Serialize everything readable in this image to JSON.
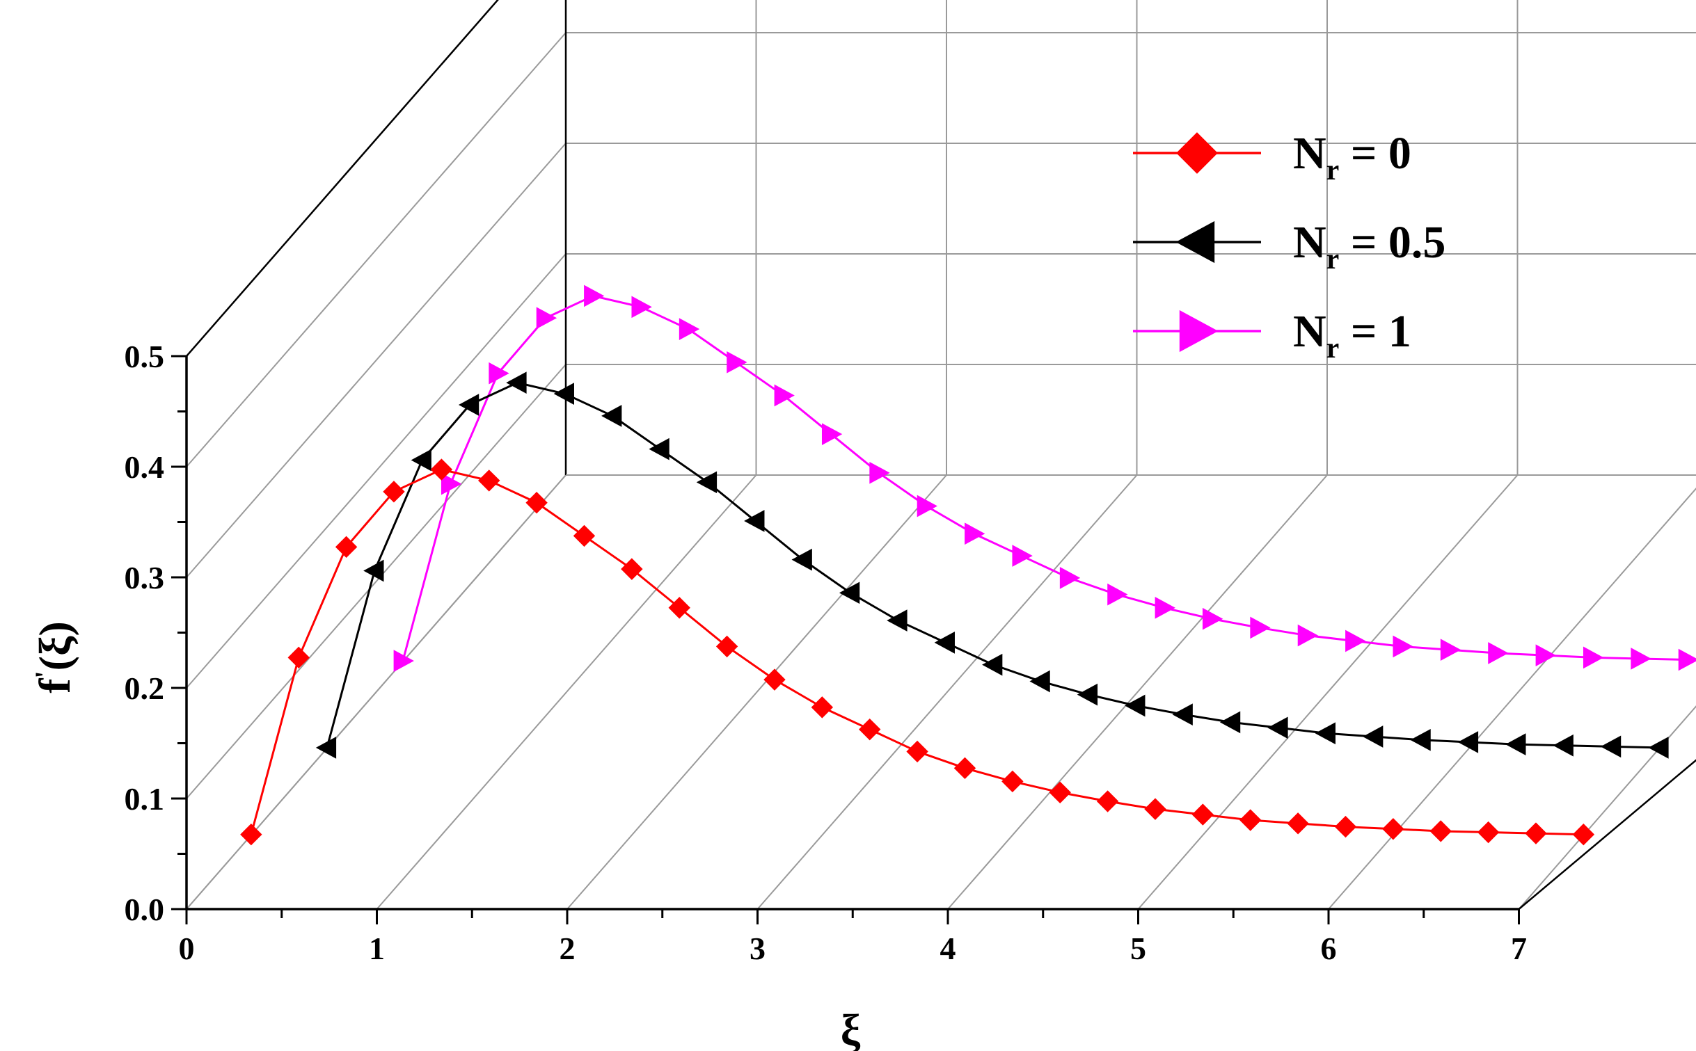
{
  "chart_data": {
    "type": "line",
    "subtype": "3d-waterfall",
    "xlabel": "ξ",
    "ylabel_main": "f",
    "ylabel_prime": "'",
    "ylabel_arg": "(ξ)",
    "xlim": [
      0,
      7
    ],
    "ylim": [
      0,
      0.5
    ],
    "x_ticks": [
      "0",
      "1",
      "2",
      "3",
      "4",
      "5",
      "6",
      "7"
    ],
    "y_ticks": [
      "0.0",
      "0.1",
      "0.2",
      "0.3",
      "0.4",
      "0.5"
    ],
    "grid": true,
    "legend_position": "top-right",
    "x": [
      0.2,
      0.45,
      0.7,
      0.95,
      1.2,
      1.45,
      1.7,
      1.95,
      2.2,
      2.45,
      2.7,
      2.95,
      3.2,
      3.45,
      3.7,
      3.95,
      4.2,
      4.45,
      4.7,
      4.95,
      5.2,
      5.45,
      5.7,
      5.95,
      6.2,
      6.45,
      6.7,
      6.95,
      7.2
    ],
    "series": [
      {
        "legend_main": "N",
        "legend_sub": "r",
        "legend_rest": " = 0",
        "color": "#ff0000",
        "marker": "diamond",
        "depth": 0,
        "values": [
          0.04,
          0.2,
          0.3,
          0.35,
          0.37,
          0.36,
          0.34,
          0.31,
          0.28,
          0.245,
          0.21,
          0.18,
          0.155,
          0.135,
          0.115,
          0.1,
          0.088,
          0.078,
          0.07,
          0.063,
          0.058,
          0.053,
          0.05,
          0.047,
          0.045,
          0.043,
          0.042,
          0.041,
          0.04
        ]
      },
      {
        "legend_main": "N",
        "legend_sub": "r",
        "legend_rest": " = 0.5",
        "color": "#000000",
        "marker": "triangle-left",
        "depth": 1,
        "values": [
          0.04,
          0.2,
          0.3,
          0.35,
          0.37,
          0.36,
          0.34,
          0.31,
          0.28,
          0.245,
          0.21,
          0.18,
          0.155,
          0.135,
          0.115,
          0.1,
          0.088,
          0.078,
          0.07,
          0.063,
          0.058,
          0.053,
          0.05,
          0.047,
          0.045,
          0.043,
          0.042,
          0.041,
          0.04
        ]
      },
      {
        "legend_main": "N",
        "legend_sub": "r",
        "legend_rest": " = 1",
        "color": "#ff00ff",
        "marker": "triangle-right",
        "depth": 2,
        "values": [
          0.04,
          0.2,
          0.3,
          0.35,
          0.37,
          0.36,
          0.34,
          0.31,
          0.28,
          0.245,
          0.21,
          0.18,
          0.155,
          0.135,
          0.115,
          0.1,
          0.088,
          0.078,
          0.07,
          0.063,
          0.058,
          0.053,
          0.05,
          0.047,
          0.045,
          0.043,
          0.042,
          0.041,
          0.04
        ]
      }
    ]
  }
}
